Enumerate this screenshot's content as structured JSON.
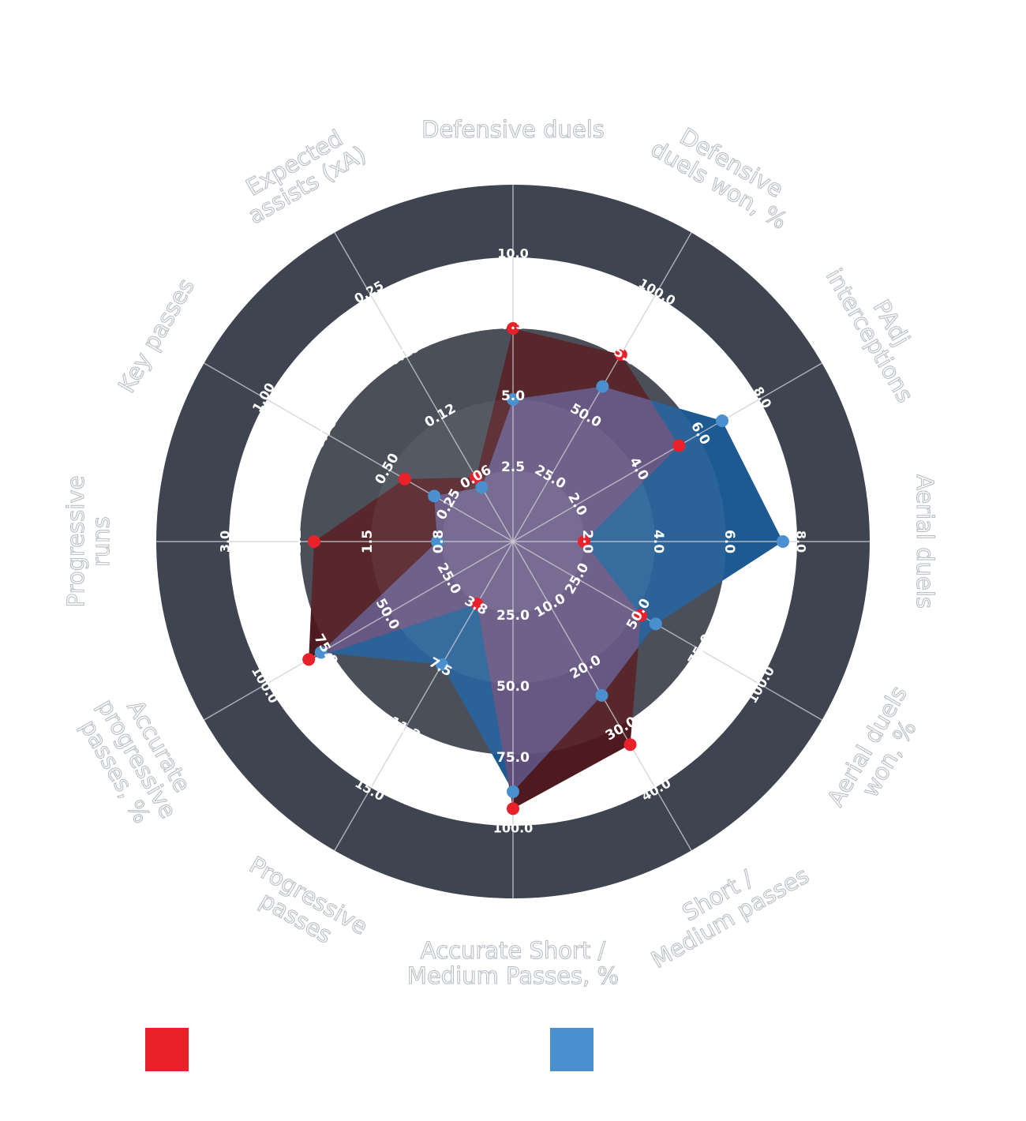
{
  "chart_data": {
    "type": "radar",
    "colors": {
      "series_red": "#e8212a",
      "series_blue": "#4a8fce",
      "ring": "#3f4550",
      "area_red": "#4e1a1f",
      "area_blue": "#1e5a92",
      "overlap": "#5d4e7c"
    },
    "axes": [
      {
        "label": "Defensive duels",
        "ticks": [
          "2.5",
          "5.0",
          "7.5",
          "10.0"
        ]
      },
      {
        "label": "Defensive duels won, %",
        "ticks": [
          "25.0",
          "50.0",
          "75.0",
          "100.0"
        ]
      },
      {
        "label": "PAdj interceptions",
        "ticks": [
          "2.0",
          "4.0",
          "6.0",
          "8.0"
        ]
      },
      {
        "label": "Aerial duels",
        "ticks": [
          "2.0",
          "4.0",
          "6.0",
          "8.0"
        ]
      },
      {
        "label": "Aerial duels won, %",
        "ticks": [
          "25.0",
          "50.0",
          "75.0",
          "100.0"
        ]
      },
      {
        "label": "Short / Medium passes",
        "ticks": [
          "10.0",
          "20.0",
          "30.0",
          "40.0"
        ]
      },
      {
        "label": "Accurate Short / Medium Passes, %",
        "ticks": [
          "25.0",
          "50.0",
          "75.0",
          "100.0"
        ]
      },
      {
        "label": "Progressive passes",
        "ticks": [
          "3.8",
          "7.5",
          "11.2",
          "15.0"
        ]
      },
      {
        "label": "Accurate progressive passes, %",
        "ticks": [
          "25.0",
          "50.0",
          "75.0",
          "100.0"
        ]
      },
      {
        "label": "Progressive runs",
        "ticks": [
          "0.8",
          "1.5",
          "2.2",
          "3.0"
        ]
      },
      {
        "label": "Key passes",
        "ticks": [
          "0.25",
          "0.50",
          "0.75",
          "1.00"
        ]
      },
      {
        "label": "Expected assists (xA)",
        "ticks": [
          "0.06",
          "0.12",
          "0.19",
          "0.25"
        ]
      }
    ],
    "max": [
      10,
      100,
      8,
      8,
      100,
      40,
      100,
      15,
      100,
      3,
      1,
      0.25
    ],
    "series": [
      {
        "color": "#e8212a",
        "values": [
          7.5,
          76,
          5.4,
          2.0,
          52,
          33,
          94,
          3.8,
          83,
          2.1,
          0.44,
          0.065
        ]
      },
      {
        "color": "#4a8fce",
        "values": [
          5.0,
          63,
          6.8,
          7.6,
          58,
          25,
          88,
          7.5,
          78,
          0.8,
          0.32,
          0.055
        ]
      }
    ],
    "legend": [
      {
        "color": "#e8212a",
        "label": ""
      },
      {
        "color": "#4a8fce",
        "label": ""
      }
    ]
  }
}
